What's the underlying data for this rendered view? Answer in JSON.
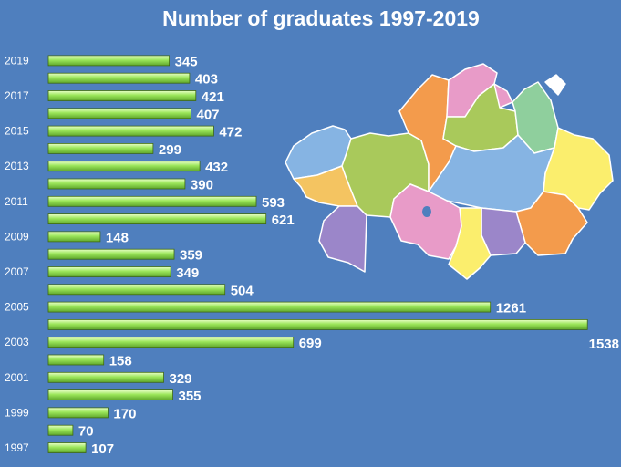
{
  "chart_data": {
    "type": "bar",
    "orientation": "horizontal",
    "title": "Number of graduates 1997-2019",
    "xlabel": "",
    "ylabel": "",
    "categories": [
      "1997",
      "1998",
      "1999",
      "2000",
      "2001",
      "2002",
      "2003",
      "2004",
      "2005",
      "2006",
      "2007",
      "2008",
      "2009",
      "2010",
      "2011",
      "2012",
      "2013",
      "2014",
      "2015",
      "2016",
      "2017",
      "2018",
      "2019"
    ],
    "tick_labels": [
      "1997",
      "1999",
      "2001",
      "2003",
      "2005",
      "2007",
      "2009",
      "2011",
      "2013",
      "2015",
      "2017",
      "2019"
    ],
    "values": [
      107,
      70,
      170,
      355,
      329,
      158,
      699,
      1538,
      1261,
      504,
      349,
      359,
      148,
      621,
      593,
      390,
      432,
      299,
      472,
      407,
      421,
      403,
      345
    ],
    "xlim": [
      0,
      1540
    ],
    "grid": false,
    "legend": "none",
    "bar_color": "#9be65a",
    "background_color": "#4f7fbe",
    "map_colors": [
      "#86b4e3",
      "#a9c95b",
      "#f4c461",
      "#9b86c9",
      "#e89bc8",
      "#f39b4c",
      "#fbee6d",
      "#8fcf9d",
      "#ffffff"
    ]
  }
}
